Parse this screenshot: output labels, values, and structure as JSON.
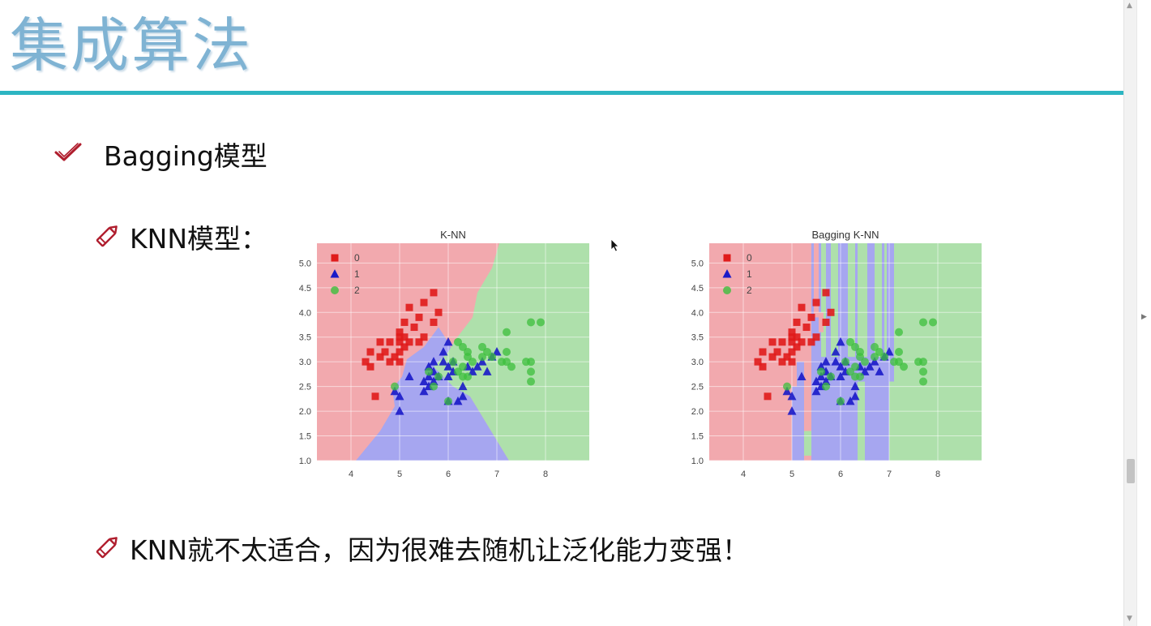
{
  "slide": {
    "title": "集成算法",
    "bullet": "Bagging模型",
    "sub1": "KNN模型：",
    "sub2": "KNN就不太适合，因为很难去随机让泛化能力变强！"
  },
  "icons": {
    "bullet": "check-icon",
    "sub": "pencil-icon"
  },
  "colors": {
    "title": "#7fb3d3",
    "rule": "#2cb5c2",
    "class0": "#e01b1b",
    "class1": "#1a1ac8",
    "class2": "#3cbf3c",
    "region0": "#f2a9ae",
    "region1": "#a6a6f0",
    "region2": "#aee0ab"
  },
  "chart_data": [
    {
      "type": "scatter",
      "title": "K-NN",
      "xlim": [
        3.3,
        8.9
      ],
      "ylim": [
        1.0,
        5.4
      ],
      "xticks": [
        4,
        5,
        6,
        7,
        8
      ],
      "yticks": [
        1.0,
        1.5,
        2.0,
        2.5,
        3.0,
        3.5,
        4.0,
        4.5,
        5.0
      ],
      "legend": [
        "0",
        "1",
        "2"
      ],
      "legend_position": "top-left",
      "grid": true,
      "series": [
        {
          "name": "0",
          "marker": "square",
          "color": "#e01b1b",
          "points": [
            [
              4.3,
              3.0
            ],
            [
              4.4,
              2.9
            ],
            [
              4.4,
              3.2
            ],
            [
              4.5,
              2.3
            ],
            [
              4.6,
              3.1
            ],
            [
              4.6,
              3.4
            ],
            [
              4.7,
              3.2
            ],
            [
              4.8,
              3.0
            ],
            [
              4.8,
              3.4
            ],
            [
              4.9,
              3.1
            ],
            [
              5.0,
              3.0
            ],
            [
              5.0,
              3.2
            ],
            [
              5.0,
              3.4
            ],
            [
              5.0,
              3.5
            ],
            [
              5.0,
              3.6
            ],
            [
              5.1,
              3.3
            ],
            [
              5.1,
              3.5
            ],
            [
              5.1,
              3.8
            ],
            [
              5.2,
              3.4
            ],
            [
              5.2,
              4.1
            ],
            [
              5.3,
              3.7
            ],
            [
              5.4,
              3.4
            ],
            [
              5.4,
              3.9
            ],
            [
              5.5,
              3.5
            ],
            [
              5.5,
              4.2
            ],
            [
              5.7,
              3.8
            ],
            [
              5.7,
              4.4
            ],
            [
              5.8,
              4.0
            ]
          ]
        },
        {
          "name": "1",
          "marker": "triangle",
          "color": "#1a1ac8",
          "points": [
            [
              4.9,
              2.4
            ],
            [
              5.0,
              2.0
            ],
            [
              5.0,
              2.3
            ],
            [
              5.2,
              2.7
            ],
            [
              5.5,
              2.4
            ],
            [
              5.5,
              2.6
            ],
            [
              5.6,
              2.5
            ],
            [
              5.6,
              2.7
            ],
            [
              5.6,
              2.9
            ],
            [
              5.7,
              2.6
            ],
            [
              5.7,
              2.8
            ],
            [
              5.7,
              3.0
            ],
            [
              5.8,
              2.7
            ],
            [
              5.9,
              3.0
            ],
            [
              5.9,
              3.2
            ],
            [
              6.0,
              2.2
            ],
            [
              6.0,
              2.7
            ],
            [
              6.0,
              2.9
            ],
            [
              6.0,
              3.4
            ],
            [
              6.1,
              2.8
            ],
            [
              6.1,
              3.0
            ],
            [
              6.2,
              2.2
            ],
            [
              6.3,
              2.3
            ],
            [
              6.3,
              2.5
            ],
            [
              6.4,
              2.9
            ],
            [
              6.5,
              2.8
            ],
            [
              6.6,
              2.9
            ],
            [
              6.7,
              3.0
            ],
            [
              6.8,
              2.8
            ],
            [
              6.9,
              3.1
            ],
            [
              7.0,
              3.2
            ]
          ]
        },
        {
          "name": "2",
          "marker": "circle",
          "color": "#3cbf3c",
          "points": [
            [
              4.9,
              2.5
            ],
            [
              5.6,
              2.8
            ],
            [
              5.7,
              2.5
            ],
            [
              5.8,
              2.7
            ],
            [
              6.0,
              2.2
            ],
            [
              6.1,
              3.0
            ],
            [
              6.2,
              2.8
            ],
            [
              6.2,
              3.4
            ],
            [
              6.3,
              2.7
            ],
            [
              6.3,
              2.9
            ],
            [
              6.3,
              3.3
            ],
            [
              6.4,
              2.7
            ],
            [
              6.4,
              3.1
            ],
            [
              6.4,
              3.2
            ],
            [
              6.5,
              3.0
            ],
            [
              6.7,
              3.1
            ],
            [
              6.7,
              3.3
            ],
            [
              6.8,
              3.2
            ],
            [
              6.9,
              3.1
            ],
            [
              7.1,
              3.0
            ],
            [
              7.2,
              3.0
            ],
            [
              7.2,
              3.2
            ],
            [
              7.2,
              3.6
            ],
            [
              7.3,
              2.9
            ],
            [
              7.6,
              3.0
            ],
            [
              7.7,
              2.6
            ],
            [
              7.7,
              2.8
            ],
            [
              7.7,
              3.0
            ],
            [
              7.7,
              3.8
            ],
            [
              7.9,
              3.8
            ]
          ]
        }
      ]
    },
    {
      "type": "scatter",
      "title": "Bagging K-NN",
      "xlim": [
        3.3,
        8.9
      ],
      "ylim": [
        1.0,
        5.4
      ],
      "xticks": [
        4,
        5,
        6,
        7,
        8
      ],
      "yticks": [
        1.0,
        1.5,
        2.0,
        2.5,
        3.0,
        3.5,
        4.0,
        4.5,
        5.0
      ],
      "legend": [
        "0",
        "1",
        "2"
      ],
      "legend_position": "top-left",
      "grid": true,
      "series_same_as": "K-NN"
    }
  ]
}
